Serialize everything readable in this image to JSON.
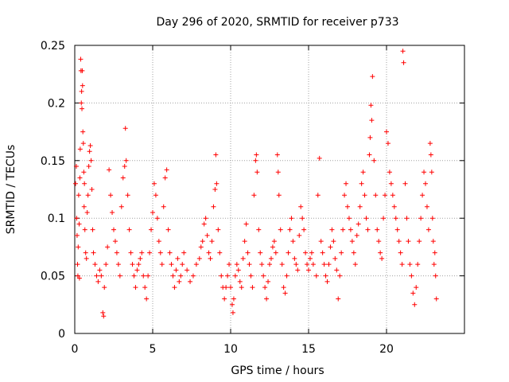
{
  "chart_data": {
    "type": "scatter",
    "title": "Day 296 of 2020, SRMTID for receiver p733",
    "xlabel": "GPS time / hours",
    "ylabel": "SRMTID / TECUs",
    "xlim": [
      0,
      25
    ],
    "ylim": [
      0,
      0.25
    ],
    "x_ticks": [
      0,
      5,
      10,
      15,
      20
    ],
    "x_tick_labels": [
      "0",
      "5",
      "10",
      "15",
      "20"
    ],
    "y_ticks": [
      0,
      0.05,
      0.1,
      0.15,
      0.2,
      0.25
    ],
    "y_tick_labels": [
      "0",
      "0.05",
      "0.1",
      "0.15",
      "0.2",
      "0.25"
    ],
    "grid": true,
    "marker": "+",
    "color": "#ff0000",
    "series": [
      {
        "name": "SRMTID",
        "points": [
          [
            0.05,
            0.13
          ],
          [
            0.1,
            0.145
          ],
          [
            0.12,
            0.1
          ],
          [
            0.15,
            0.085
          ],
          [
            0.18,
            0.06
          ],
          [
            0.2,
            0.05
          ],
          [
            0.22,
            0.075
          ],
          [
            0.25,
            0.12
          ],
          [
            0.28,
            0.095
          ],
          [
            0.3,
            0.048
          ],
          [
            0.33,
            0.135
          ],
          [
            0.35,
            0.16
          ],
          [
            0.38,
            0.238
          ],
          [
            0.4,
            0.228
          ],
          [
            0.42,
            0.2
          ],
          [
            0.44,
            0.21
          ],
          [
            0.46,
            0.195
          ],
          [
            0.48,
            0.228
          ],
          [
            0.5,
            0.215
          ],
          [
            0.52,
            0.175
          ],
          [
            0.55,
            0.165
          ],
          [
            0.58,
            0.14
          ],
          [
            0.6,
            0.11
          ],
          [
            0.62,
            0.13
          ],
          [
            0.65,
            0.09
          ],
          [
            0.7,
            0.07
          ],
          [
            0.75,
            0.065
          ],
          [
            0.8,
            0.105
          ],
          [
            0.85,
            0.12
          ],
          [
            0.9,
            0.145
          ],
          [
            0.95,
            0.158
          ],
          [
            1.0,
            0.163
          ],
          [
            1.05,
            0.15
          ],
          [
            1.1,
            0.125
          ],
          [
            1.15,
            0.09
          ],
          [
            1.2,
            0.07
          ],
          [
            1.3,
            0.06
          ],
          [
            1.4,
            0.05
          ],
          [
            1.5,
            0.045
          ],
          [
            1.6,
            0.055
          ],
          [
            1.7,
            0.05
          ],
          [
            1.8,
            0.018
          ],
          [
            1.85,
            0.015
          ],
          [
            1.9,
            0.04
          ],
          [
            2.0,
            0.06
          ],
          [
            2.1,
            0.075
          ],
          [
            2.2,
            0.142
          ],
          [
            2.3,
            0.12
          ],
          [
            2.4,
            0.105
          ],
          [
            2.5,
            0.09
          ],
          [
            2.6,
            0.08
          ],
          [
            2.7,
            0.07
          ],
          [
            2.8,
            0.06
          ],
          [
            2.9,
            0.05
          ],
          [
            3.0,
            0.11
          ],
          [
            3.1,
            0.135
          ],
          [
            3.2,
            0.145
          ],
          [
            3.25,
            0.178
          ],
          [
            3.3,
            0.15
          ],
          [
            3.4,
            0.12
          ],
          [
            3.5,
            0.09
          ],
          [
            3.6,
            0.07
          ],
          [
            3.7,
            0.06
          ],
          [
            3.8,
            0.05
          ],
          [
            3.9,
            0.04
          ],
          [
            4.0,
            0.055
          ],
          [
            4.1,
            0.06
          ],
          [
            4.2,
            0.065
          ],
          [
            4.3,
            0.07
          ],
          [
            4.4,
            0.05
          ],
          [
            4.5,
            0.04
          ],
          [
            4.6,
            0.03
          ],
          [
            4.7,
            0.05
          ],
          [
            4.8,
            0.07
          ],
          [
            4.9,
            0.09
          ],
          [
            5.0,
            0.105
          ],
          [
            5.1,
            0.13
          ],
          [
            5.2,
            0.12
          ],
          [
            5.3,
            0.1
          ],
          [
            5.4,
            0.08
          ],
          [
            5.5,
            0.07
          ],
          [
            5.6,
            0.06
          ],
          [
            5.7,
            0.11
          ],
          [
            5.8,
            0.135
          ],
          [
            5.9,
            0.142
          ],
          [
            6.0,
            0.09
          ],
          [
            6.1,
            0.07
          ],
          [
            6.2,
            0.06
          ],
          [
            6.3,
            0.05
          ],
          [
            6.4,
            0.04
          ],
          [
            6.5,
            0.055
          ],
          [
            6.6,
            0.065
          ],
          [
            6.7,
            0.045
          ],
          [
            6.8,
            0.05
          ],
          [
            6.9,
            0.06
          ],
          [
            7.0,
            0.07
          ],
          [
            7.2,
            0.055
          ],
          [
            7.4,
            0.045
          ],
          [
            7.6,
            0.05
          ],
          [
            7.8,
            0.06
          ],
          [
            8.0,
            0.065
          ],
          [
            8.1,
            0.075
          ],
          [
            8.2,
            0.08
          ],
          [
            8.3,
            0.095
          ],
          [
            8.4,
            0.1
          ],
          [
            8.5,
            0.085
          ],
          [
            8.6,
            0.07
          ],
          [
            8.7,
            0.065
          ],
          [
            8.8,
            0.08
          ],
          [
            8.9,
            0.11
          ],
          [
            9.0,
            0.125
          ],
          [
            9.05,
            0.155
          ],
          [
            9.1,
            0.13
          ],
          [
            9.2,
            0.09
          ],
          [
            9.3,
            0.07
          ],
          [
            9.4,
            0.05
          ],
          [
            9.5,
            0.04
          ],
          [
            9.6,
            0.03
          ],
          [
            9.7,
            0.04
          ],
          [
            9.8,
            0.05
          ],
          [
            9.9,
            0.06
          ],
          [
            10.0,
            0.04
          ],
          [
            10.1,
            0.025
          ],
          [
            10.15,
            0.018
          ],
          [
            10.2,
            0.03
          ],
          [
            10.3,
            0.05
          ],
          [
            10.4,
            0.06
          ],
          [
            10.5,
            0.055
          ],
          [
            10.6,
            0.045
          ],
          [
            10.7,
            0.04
          ],
          [
            10.8,
            0.065
          ],
          [
            10.9,
            0.08
          ],
          [
            11.0,
            0.095
          ],
          [
            11.1,
            0.07
          ],
          [
            11.2,
            0.06
          ],
          [
            11.3,
            0.05
          ],
          [
            11.4,
            0.04
          ],
          [
            11.5,
            0.12
          ],
          [
            11.6,
            0.15
          ],
          [
            11.65,
            0.155
          ],
          [
            11.7,
            0.14
          ],
          [
            11.8,
            0.09
          ],
          [
            11.9,
            0.07
          ],
          [
            12.0,
            0.06
          ],
          [
            12.1,
            0.05
          ],
          [
            12.2,
            0.04
          ],
          [
            12.3,
            0.03
          ],
          [
            12.4,
            0.045
          ],
          [
            12.5,
            0.06
          ],
          [
            12.6,
            0.065
          ],
          [
            12.7,
            0.075
          ],
          [
            12.8,
            0.08
          ],
          [
            12.9,
            0.07
          ],
          [
            13.0,
            0.155
          ],
          [
            13.05,
            0.14
          ],
          [
            13.1,
            0.12
          ],
          [
            13.2,
            0.09
          ],
          [
            13.3,
            0.06
          ],
          [
            13.4,
            0.04
          ],
          [
            13.5,
            0.035
          ],
          [
            13.6,
            0.05
          ],
          [
            13.7,
            0.07
          ],
          [
            13.8,
            0.09
          ],
          [
            13.9,
            0.1
          ],
          [
            14.0,
            0.08
          ],
          [
            14.1,
            0.065
          ],
          [
            14.2,
            0.06
          ],
          [
            14.3,
            0.055
          ],
          [
            14.4,
            0.085
          ],
          [
            14.5,
            0.11
          ],
          [
            14.6,
            0.1
          ],
          [
            14.7,
            0.09
          ],
          [
            14.8,
            0.07
          ],
          [
            14.9,
            0.06
          ],
          [
            15.0,
            0.055
          ],
          [
            15.1,
            0.065
          ],
          [
            15.2,
            0.07
          ],
          [
            15.3,
            0.06
          ],
          [
            15.5,
            0.05
          ],
          [
            15.6,
            0.12
          ],
          [
            15.7,
            0.152
          ],
          [
            15.8,
            0.08
          ],
          [
            15.9,
            0.07
          ],
          [
            16.0,
            0.06
          ],
          [
            16.1,
            0.05
          ],
          [
            16.2,
            0.045
          ],
          [
            16.3,
            0.06
          ],
          [
            16.4,
            0.075
          ],
          [
            16.5,
            0.09
          ],
          [
            16.6,
            0.08
          ],
          [
            16.7,
            0.065
          ],
          [
            16.8,
            0.055
          ],
          [
            16.9,
            0.03
          ],
          [
            17.0,
            0.05
          ],
          [
            17.1,
            0.07
          ],
          [
            17.2,
            0.09
          ],
          [
            17.3,
            0.12
          ],
          [
            17.4,
            0.13
          ],
          [
            17.5,
            0.11
          ],
          [
            17.6,
            0.1
          ],
          [
            17.7,
            0.09
          ],
          [
            17.8,
            0.08
          ],
          [
            17.9,
            0.07
          ],
          [
            18.0,
            0.06
          ],
          [
            18.1,
            0.085
          ],
          [
            18.2,
            0.095
          ],
          [
            18.3,
            0.11
          ],
          [
            18.4,
            0.13
          ],
          [
            18.5,
            0.14
          ],
          [
            18.6,
            0.12
          ],
          [
            18.7,
            0.1
          ],
          [
            18.8,
            0.09
          ],
          [
            18.9,
            0.155
          ],
          [
            18.95,
            0.17
          ],
          [
            19.0,
            0.198
          ],
          [
            19.05,
            0.185
          ],
          [
            19.1,
            0.223
          ],
          [
            19.2,
            0.15
          ],
          [
            19.3,
            0.12
          ],
          [
            19.4,
            0.09
          ],
          [
            19.5,
            0.08
          ],
          [
            19.6,
            0.07
          ],
          [
            19.7,
            0.065
          ],
          [
            19.8,
            0.1
          ],
          [
            19.9,
            0.12
          ],
          [
            20.0,
            0.175
          ],
          [
            20.1,
            0.165
          ],
          [
            20.2,
            0.14
          ],
          [
            20.3,
            0.13
          ],
          [
            20.4,
            0.12
          ],
          [
            20.5,
            0.11
          ],
          [
            20.6,
            0.1
          ],
          [
            20.7,
            0.09
          ],
          [
            20.8,
            0.08
          ],
          [
            20.9,
            0.07
          ],
          [
            21.0,
            0.06
          ],
          [
            21.05,
            0.245
          ],
          [
            21.1,
            0.235
          ],
          [
            21.2,
            0.13
          ],
          [
            21.3,
            0.1
          ],
          [
            21.4,
            0.08
          ],
          [
            21.5,
            0.06
          ],
          [
            21.6,
            0.05
          ],
          [
            21.7,
            0.035
          ],
          [
            21.8,
            0.025
          ],
          [
            21.9,
            0.04
          ],
          [
            22.0,
            0.06
          ],
          [
            22.1,
            0.08
          ],
          [
            22.2,
            0.1
          ],
          [
            22.3,
            0.12
          ],
          [
            22.4,
            0.14
          ],
          [
            22.5,
            0.13
          ],
          [
            22.6,
            0.11
          ],
          [
            22.7,
            0.09
          ],
          [
            22.8,
            0.165
          ],
          [
            22.85,
            0.155
          ],
          [
            22.9,
            0.14
          ],
          [
            22.95,
            0.1
          ],
          [
            23.0,
            0.08
          ],
          [
            23.05,
            0.06
          ],
          [
            23.1,
            0.07
          ],
          [
            23.15,
            0.05
          ],
          [
            23.2,
            0.03
          ]
        ]
      }
    ]
  }
}
